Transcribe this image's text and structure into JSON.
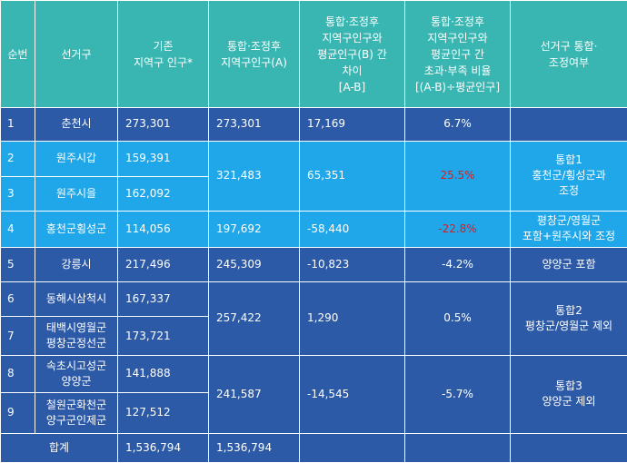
{
  "headers": [
    "순번",
    "선거구",
    "기존\n지역구 인구*",
    "통합·조정후\n지역구인구(A)",
    "통합·조정후\n지역구인구와\n평균인구(B) 간\n차이\n[A-B]",
    "통합·조정후\n지역구인구와\n평균인구 간\n초과·부족 비율\n[(A-B)÷평균인구]",
    "선거구 통합·\n조정여부"
  ],
  "rows": [
    {
      "no": "1",
      "district": "춘천시",
      "pop": "273,301",
      "adj": "273,301",
      "diff": "17,169",
      "ratio": "6.7%",
      "note": ""
    },
    {
      "no": "2",
      "district": "원주시갑",
      "pop": "159,391",
      "adj": "321,483",
      "diff": "65,351",
      "ratio": "25.5%",
      "note": "통합1\n홍천군/횡성군과\n조정"
    },
    {
      "no": "3",
      "district": "원주시을",
      "pop": "162,092"
    },
    {
      "no": "4",
      "district": "홍천군횡성군",
      "pop": "114,056",
      "adj": "197,692",
      "diff": "-58,440",
      "ratio": "-22.8%",
      "note": "평창군/영월군\n포함+원주시와 조정"
    },
    {
      "no": "5",
      "district": "강릉시",
      "pop": "217,496",
      "adj": "245,309",
      "diff": "-10,823",
      "ratio": "-4.2%",
      "note": "양양군 포함"
    },
    {
      "no": "6",
      "district": "동해시삼척시",
      "pop": "167,337",
      "adj": "257,422",
      "diff": "1,290",
      "ratio": "0.5%",
      "note": "통합2\n평창군/영월군 제외"
    },
    {
      "no": "7",
      "district": "태백시영월군\n평창군정선군",
      "pop": "173,721"
    },
    {
      "no": "8",
      "district": "속초시고성군\n양양군",
      "pop": "141,888",
      "adj": "241,587",
      "diff": "-14,545",
      "ratio": "-5.7%",
      "note": "통합3\n양양군 제외"
    },
    {
      "no": "9",
      "district": "철원군화천군\n양구군인제군",
      "pop": "127,512"
    }
  ],
  "total": {
    "label": "합계",
    "pop": "1,536,794",
    "adj": "1,536,794"
  },
  "colors": {
    "header": "#3ab6b2",
    "dark": "#2d5aa6",
    "light": "#1fa7ea",
    "negative_highlight": "#d81e1e"
  }
}
